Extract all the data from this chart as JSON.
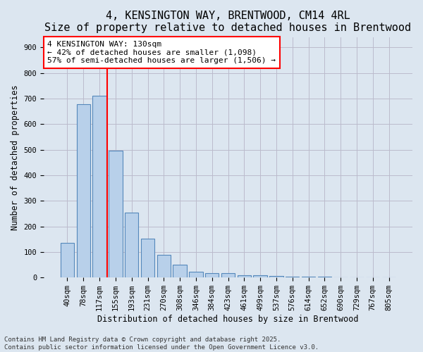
{
  "title_line1": "4, KENSINGTON WAY, BRENTWOOD, CM14 4RL",
  "title_line2": "Size of property relative to detached houses in Brentwood",
  "xlabel": "Distribution of detached houses by size in Brentwood",
  "ylabel": "Number of detached properties",
  "categories": [
    "40sqm",
    "78sqm",
    "117sqm",
    "155sqm",
    "193sqm",
    "231sqm",
    "270sqm",
    "308sqm",
    "346sqm",
    "384sqm",
    "423sqm",
    "461sqm",
    "499sqm",
    "537sqm",
    "576sqm",
    "614sqm",
    "652sqm",
    "690sqm",
    "729sqm",
    "767sqm",
    "805sqm"
  ],
  "values": [
    136,
    678,
    710,
    495,
    255,
    152,
    88,
    50,
    22,
    18,
    16,
    10,
    10,
    7,
    4,
    4,
    2,
    1,
    1,
    1,
    1
  ],
  "bar_color": "#b8d0ea",
  "bar_edge_color": "#5588bb",
  "vline_x_index": 2.5,
  "vline_color": "red",
  "annotation_text": "4 KENSINGTON WAY: 130sqm\n← 42% of detached houses are smaller (1,098)\n57% of semi-detached houses are larger (1,506) →",
  "annotation_box_color": "white",
  "annotation_box_edge_color": "red",
  "background_color": "#dce6f0",
  "grid_color": "#bbbbcc",
  "ylim": [
    0,
    940
  ],
  "yticks": [
    0,
    100,
    200,
    300,
    400,
    500,
    600,
    700,
    800,
    900
  ],
  "footnote": "Contains HM Land Registry data © Crown copyright and database right 2025.\nContains public sector information licensed under the Open Government Licence v3.0.",
  "title_fontsize": 11,
  "subtitle_fontsize": 9.5,
  "axis_label_fontsize": 8.5,
  "tick_fontsize": 7.5,
  "annotation_fontsize": 8
}
